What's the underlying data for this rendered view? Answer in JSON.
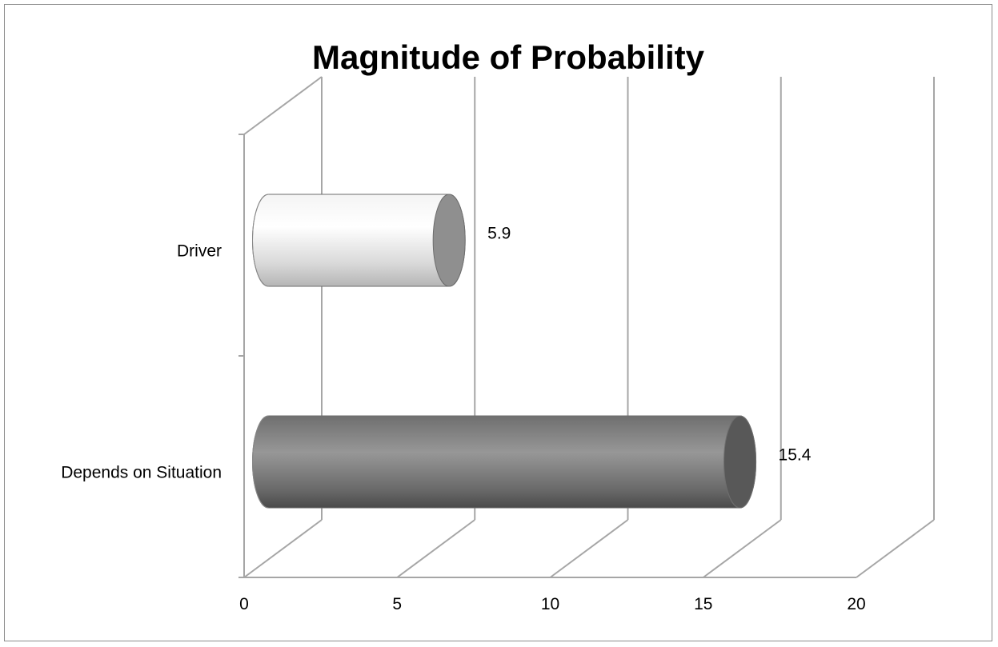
{
  "chart_data": {
    "type": "bar",
    "orientation": "horizontal",
    "style": "3d-cylinder",
    "title": "Magnitude of Probability",
    "xlabel": "",
    "ylabel": "",
    "categories": [
      "Driver",
      "Depends on Situation"
    ],
    "values": [
      5.9,
      15.4
    ],
    "data_labels": [
      "5.9",
      "15.4"
    ],
    "xlim": [
      0,
      20
    ],
    "x_ticks": [
      "0",
      "5",
      "10",
      "15",
      "20"
    ],
    "grid": true,
    "legend": "none",
    "colors": {
      "Driver": "#e6e6e6",
      "Depends on Situation": "#7a7a7a",
      "gridline": "#a6a6a6"
    }
  }
}
